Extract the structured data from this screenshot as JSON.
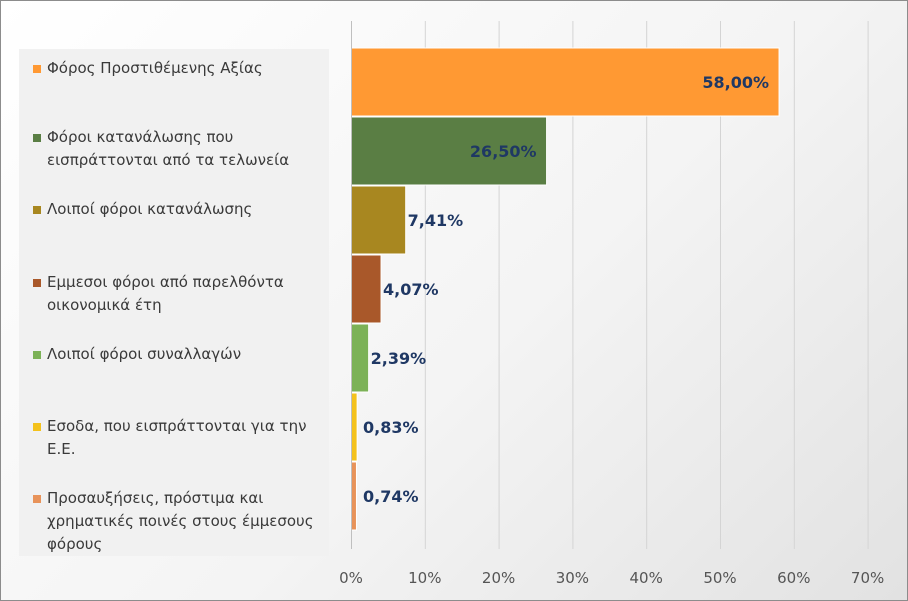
{
  "chart_data": {
    "type": "bar",
    "orientation": "horizontal",
    "title": "",
    "xlabel": "",
    "ylabel": "",
    "xlim": [
      0,
      70
    ],
    "x_ticks": [
      "0%",
      "10%",
      "20%",
      "30%",
      "40%",
      "50%",
      "60%",
      "70%"
    ],
    "grid": "vertical",
    "legend_position": "left",
    "categories": [
      "Φόρος Προστιθέμενης Αξίας",
      "Φόροι κατανάλωσης που\nεισπράττονται από τα τελωνεία",
      "Λοιποί φόροι κατανάλωσης",
      "Εμμεσοι φόροι από παρελθόντα\nοικονομικά έτη",
      "Λοιποί φόροι συναλλαγών",
      "Εσοδα, που εισπράττονται για την\nΕ.Ε.",
      "Προσαυξήσεις, πρόστιμα και\nχρηματικές ποινές στους έμμεσους\nφόρους"
    ],
    "values": [
      58.0,
      26.5,
      7.41,
      4.07,
      2.39,
      0.83,
      0.74
    ],
    "data_labels": [
      "58,00%",
      "26,50%",
      "7,41%",
      "4,07%",
      "2,39%",
      "0,83%",
      "0,74%"
    ],
    "colors": [
      "#ff9933",
      "#5a7e44",
      "#a88720",
      "#a9582a",
      "#7cb257",
      "#f4c21c",
      "#e8935a"
    ]
  }
}
